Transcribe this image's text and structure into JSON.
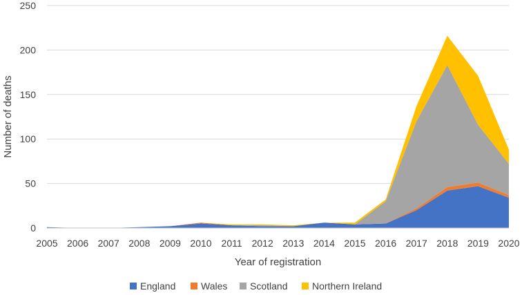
{
  "chart_data": {
    "type": "area",
    "stacked": true,
    "title": "",
    "xlabel": "Year of registration",
    "ylabel": "Number of deaths",
    "x": [
      "2005",
      "2006",
      "2007",
      "2008",
      "2009",
      "2010",
      "2011",
      "2012",
      "2013",
      "2014",
      "2015",
      "2016",
      "2017",
      "2018",
      "2019",
      "2020"
    ],
    "ylim": [
      0,
      250
    ],
    "yticks": [
      "0",
      "50",
      "100",
      "150",
      "200",
      "250"
    ],
    "grid": true,
    "legend_position": "bottom",
    "series": [
      {
        "name": "England",
        "color": "#4472C4",
        "values": [
          1,
          0,
          0,
          1,
          2,
          5,
          3,
          2,
          2,
          6,
          4,
          5,
          20,
          42,
          47,
          34
        ]
      },
      {
        "name": "Wales",
        "color": "#ED7D31",
        "values": [
          0,
          0,
          0,
          0,
          0,
          1,
          0,
          0,
          0,
          0,
          0,
          0,
          2,
          4,
          4,
          3
        ]
      },
      {
        "name": "Scotland",
        "color": "#A5A5A5",
        "values": [
          0,
          0,
          0,
          0,
          0,
          0,
          0,
          1,
          0,
          0,
          0,
          25,
          98,
          137,
          65,
          35
        ]
      },
      {
        "name": "Northern Ireland",
        "color": "#FFC000",
        "values": [
          0,
          0,
          0,
          0,
          0,
          0,
          1,
          1,
          1,
          0,
          2,
          2,
          17,
          33,
          55,
          16
        ]
      }
    ]
  }
}
